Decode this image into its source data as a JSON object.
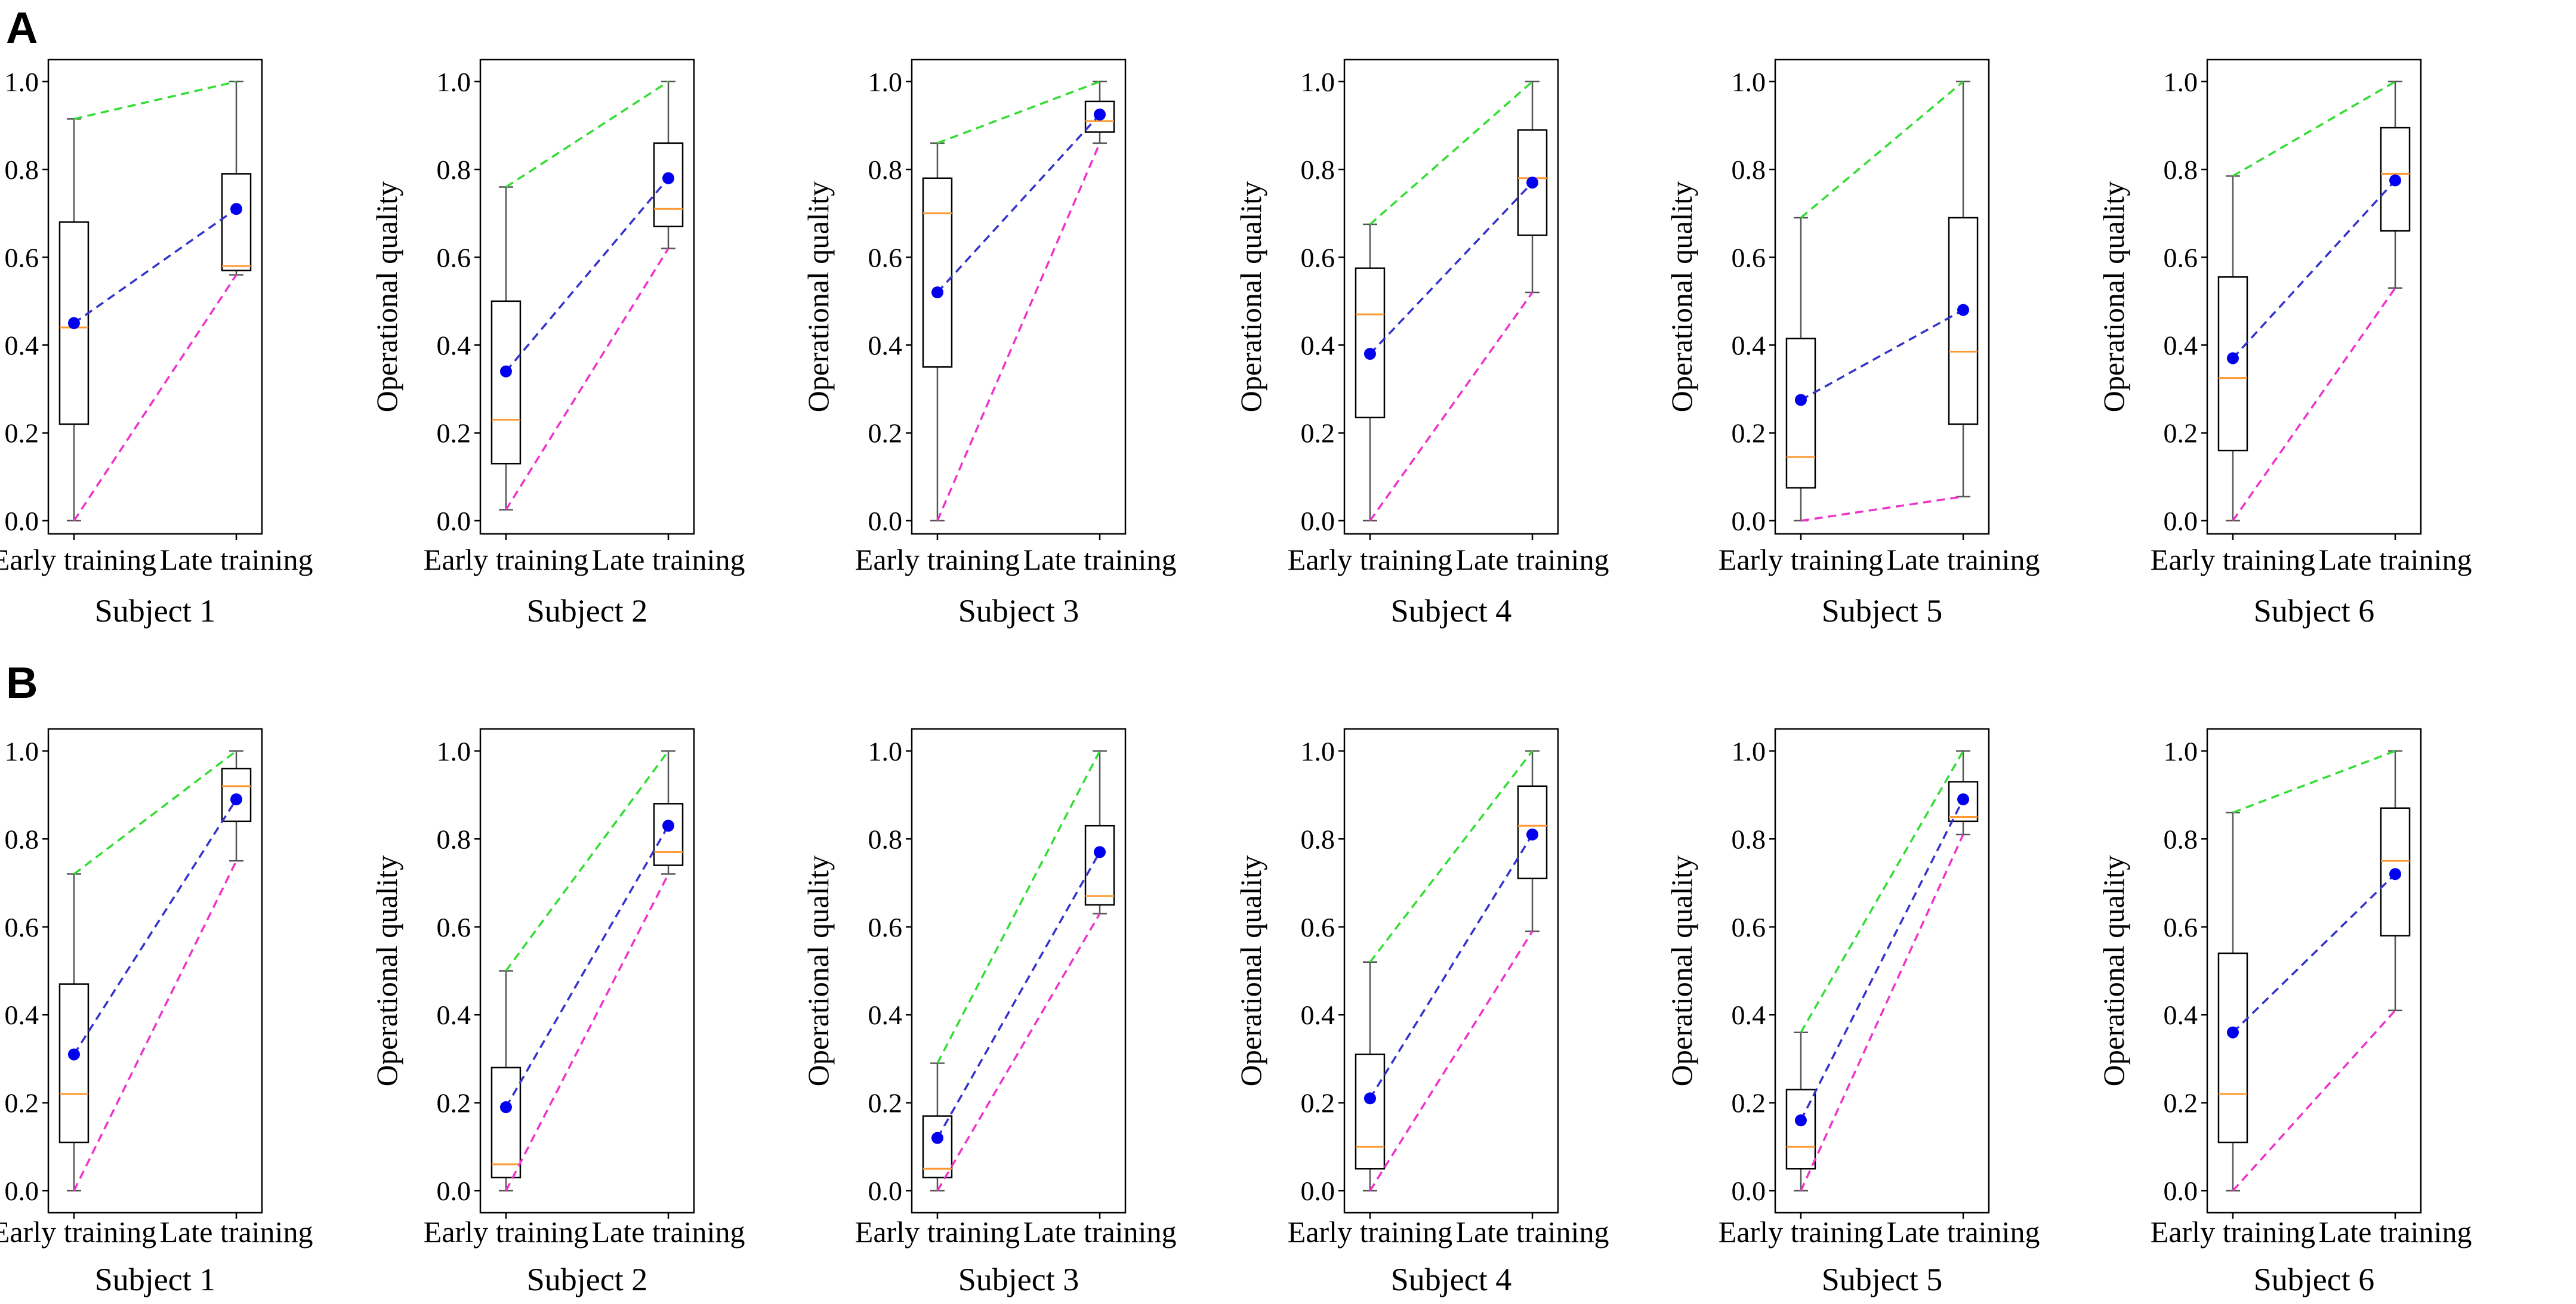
{
  "chart_data": [
    {
      "panel": "A",
      "type": "boxplot",
      "ylabel": "Operational quality",
      "yticks": [
        "0.0",
        "0.2",
        "0.4",
        "0.6",
        "0.8",
        "1.0"
      ],
      "ylim": [
        -0.03,
        1.05
      ],
      "categories": [
        "Early training",
        "Late training"
      ],
      "line_colors": {
        "max": "#33dd33",
        "mean": "#3333cc",
        "min": "#ee33cc"
      },
      "box_colors": {
        "box": "#000000",
        "median": "#ff9933",
        "whisker": "#555555",
        "mean_point": "#0000ee"
      },
      "subjects": [
        {
          "title": "Subject 1",
          "early": {
            "min": 0.0,
            "q1": 0.22,
            "median": 0.44,
            "q3": 0.68,
            "max": 0.915,
            "mean": 0.45
          },
          "late": {
            "min": 0.56,
            "q1": 0.57,
            "median": 0.58,
            "q3": 0.79,
            "max": 1.0,
            "mean": 0.71
          }
        },
        {
          "title": "Subject 2",
          "early": {
            "min": 0.025,
            "q1": 0.13,
            "median": 0.23,
            "q3": 0.5,
            "max": 0.76,
            "mean": 0.34
          },
          "late": {
            "min": 0.62,
            "q1": 0.67,
            "median": 0.71,
            "q3": 0.86,
            "max": 1.0,
            "mean": 0.78
          }
        },
        {
          "title": "Subject 3",
          "early": {
            "min": 0.0,
            "q1": 0.35,
            "median": 0.7,
            "q3": 0.78,
            "max": 0.86,
            "mean": 0.52
          },
          "late": {
            "min": 0.86,
            "q1": 0.885,
            "median": 0.91,
            "q3": 0.955,
            "max": 1.0,
            "mean": 0.925
          }
        },
        {
          "title": "Subject 4",
          "early": {
            "min": 0.0,
            "q1": 0.235,
            "median": 0.47,
            "q3": 0.575,
            "max": 0.675,
            "mean": 0.38
          },
          "late": {
            "min": 0.52,
            "q1": 0.65,
            "median": 0.78,
            "q3": 0.89,
            "max": 1.0,
            "mean": 0.77
          }
        },
        {
          "title": "Subject 5",
          "early": {
            "min": 0.0,
            "q1": 0.075,
            "median": 0.145,
            "q3": 0.415,
            "max": 0.69,
            "mean": 0.275
          },
          "late": {
            "min": 0.055,
            "q1": 0.22,
            "median": 0.385,
            "q3": 0.69,
            "max": 1.0,
            "mean": 0.48
          }
        },
        {
          "title": "Subject 6",
          "early": {
            "min": 0.0,
            "q1": 0.16,
            "median": 0.325,
            "q3": 0.555,
            "max": 0.785,
            "mean": 0.37
          },
          "late": {
            "min": 0.53,
            "q1": 0.66,
            "median": 0.79,
            "q3": 0.895,
            "max": 1.0,
            "mean": 0.775
          }
        }
      ]
    },
    {
      "panel": "B",
      "type": "boxplot",
      "ylabel": "Operational quality",
      "yticks": [
        "0.0",
        "0.2",
        "0.4",
        "0.6",
        "0.8",
        "1.0"
      ],
      "ylim": [
        -0.05,
        1.05
      ],
      "categories": [
        "Early training",
        "Late training"
      ],
      "line_colors": {
        "max": "#33dd33",
        "mean": "#3333cc",
        "min": "#ee33cc"
      },
      "box_colors": {
        "box": "#000000",
        "median": "#ff9933",
        "whisker": "#555555",
        "mean_point": "#0000ee"
      },
      "subjects": [
        {
          "title": "Subject 1",
          "early": {
            "min": 0.0,
            "q1": 0.11,
            "median": 0.22,
            "q3": 0.47,
            "max": 0.72,
            "mean": 0.31
          },
          "late": {
            "min": 0.75,
            "q1": 0.84,
            "median": 0.92,
            "q3": 0.96,
            "max": 1.0,
            "mean": 0.89
          }
        },
        {
          "title": "Subject 2",
          "early": {
            "min": 0.0,
            "q1": 0.03,
            "median": 0.06,
            "q3": 0.28,
            "max": 0.5,
            "mean": 0.19
          },
          "late": {
            "min": 0.72,
            "q1": 0.74,
            "median": 0.77,
            "q3": 0.88,
            "max": 1.0,
            "mean": 0.83
          }
        },
        {
          "title": "Subject 3",
          "early": {
            "min": 0.0,
            "q1": 0.03,
            "median": 0.05,
            "q3": 0.17,
            "max": 0.29,
            "mean": 0.12
          },
          "late": {
            "min": 0.63,
            "q1": 0.65,
            "median": 0.67,
            "q3": 0.83,
            "max": 1.0,
            "mean": 0.77
          }
        },
        {
          "title": "Subject 4",
          "early": {
            "min": 0.0,
            "q1": 0.05,
            "median": 0.1,
            "q3": 0.31,
            "max": 0.52,
            "mean": 0.21
          },
          "late": {
            "min": 0.59,
            "q1": 0.71,
            "median": 0.83,
            "q3": 0.92,
            "max": 1.0,
            "mean": 0.81
          }
        },
        {
          "title": "Subject 5",
          "early": {
            "min": 0.0,
            "q1": 0.05,
            "median": 0.1,
            "q3": 0.23,
            "max": 0.36,
            "mean": 0.16
          },
          "late": {
            "min": 0.81,
            "q1": 0.84,
            "median": 0.85,
            "q3": 0.93,
            "max": 1.0,
            "mean": 0.89
          }
        },
        {
          "title": "Subject 6",
          "early": {
            "min": 0.0,
            "q1": 0.11,
            "median": 0.22,
            "q3": 0.54,
            "max": 0.86,
            "mean": 0.36
          },
          "late": {
            "min": 0.41,
            "q1": 0.58,
            "median": 0.75,
            "q3": 0.87,
            "max": 1.0,
            "mean": 0.72
          }
        }
      ]
    }
  ]
}
